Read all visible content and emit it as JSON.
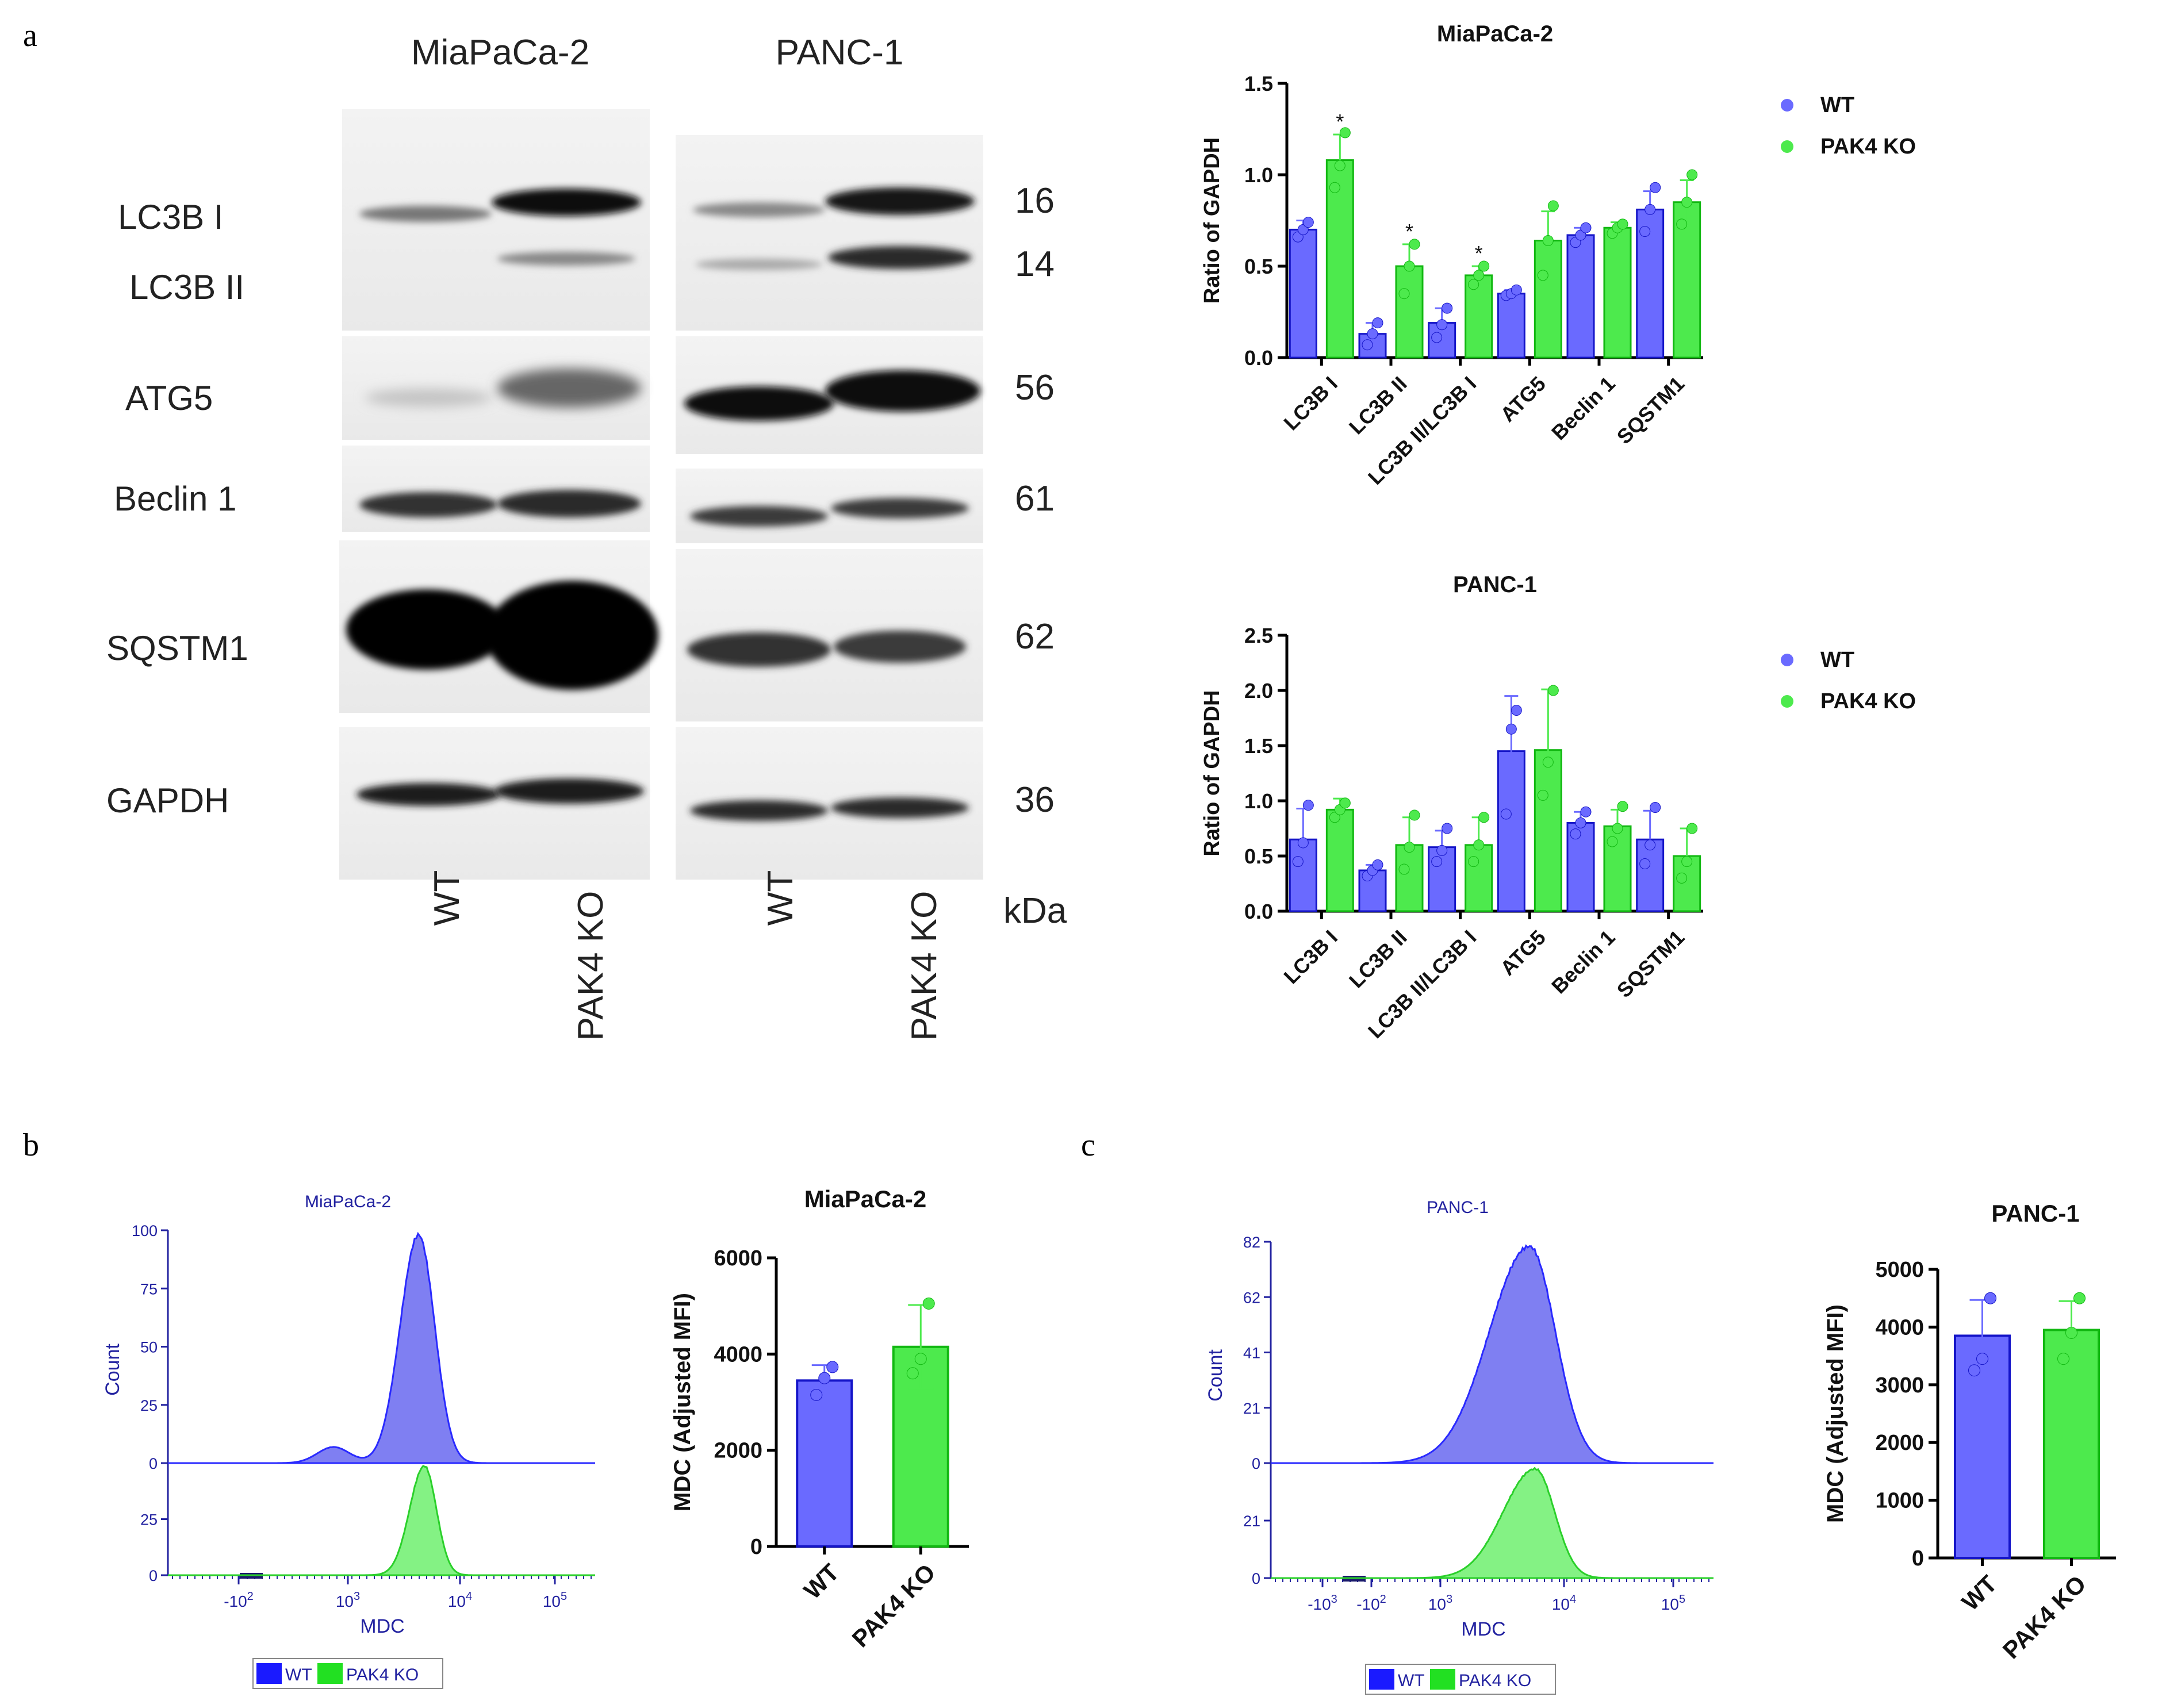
{
  "panel_labels": {
    "a": "a",
    "b": "b",
    "c": "c"
  },
  "blot": {
    "cell_lines": [
      "MiaPaCa-2",
      "PANC-1"
    ],
    "proteins": [
      "LC3B I",
      "LC3B II",
      "ATG5",
      "Beclin 1",
      "SQSTM1",
      "GAPDH"
    ],
    "kda_values": [
      "16",
      "14",
      "56",
      "61",
      "62",
      "36"
    ],
    "kda_unit": "kDa",
    "lane_labels": [
      "WT",
      "PAK4 KO",
      "WT",
      "PAK4 KO"
    ]
  },
  "colors": {
    "wt": "#6a6aff",
    "ko": "#4dea4d",
    "wt_dark": "#1515c8",
    "ko_dark": "#12b812",
    "hist_wt": "#7f7ff2",
    "hist_ko": "#6ef06e",
    "hist_axis": "#2222a0"
  },
  "chart_data": [
    {
      "type": "bar",
      "title": "MiaPaCa-2",
      "ylabel": "Ratio of GAPDH",
      "categories": [
        "LC3B I",
        "LC3B II",
        "LC3B II/LC3B I",
        "ATG5",
        "Beclin 1",
        "SQSTM1"
      ],
      "series": [
        {
          "name": "WT",
          "values": [
            0.7,
            0.13,
            0.19,
            0.35,
            0.67,
            0.81
          ],
          "errors": [
            0.05,
            0.06,
            0.08,
            0.02,
            0.04,
            0.1
          ],
          "points": [
            [
              0.66,
              0.7,
              0.74
            ],
            [
              0.07,
              0.13,
              0.19
            ],
            [
              0.11,
              0.18,
              0.27
            ],
            [
              0.34,
              0.35,
              0.37
            ],
            [
              0.63,
              0.67,
              0.71
            ],
            [
              0.69,
              0.81,
              0.93
            ]
          ]
        },
        {
          "name": "PAK4 KO",
          "values": [
            1.08,
            0.5,
            0.45,
            0.64,
            0.71,
            0.85
          ],
          "errors": [
            0.14,
            0.12,
            0.05,
            0.16,
            0.03,
            0.12
          ],
          "points": [
            [
              0.93,
              1.05,
              1.23
            ],
            [
              0.35,
              0.5,
              0.62
            ],
            [
              0.4,
              0.45,
              0.5
            ],
            [
              0.45,
              0.64,
              0.83
            ],
            [
              0.68,
              0.71,
              0.73
            ],
            [
              0.73,
              0.85,
              1.0
            ]
          ]
        }
      ],
      "significance": [
        "*",
        "*",
        "*",
        "",
        "",
        ""
      ],
      "ylim": [
        0,
        1.5
      ],
      "yticks": [
        "0.0",
        "0.5",
        "1.0",
        "1.5"
      ],
      "legend": "right"
    },
    {
      "type": "bar",
      "title": "PANC-1",
      "ylabel": "Ratio of GAPDH",
      "categories": [
        "LC3B I",
        "LC3B II",
        "LC3B II/LC3B I",
        "ATG5",
        "Beclin 1",
        "SQSTM1"
      ],
      "series": [
        {
          "name": "WT",
          "values": [
            0.65,
            0.37,
            0.58,
            1.45,
            0.8,
            0.65
          ],
          "errors": [
            0.28,
            0.05,
            0.15,
            0.5,
            0.1,
            0.26
          ],
          "points": [
            [
              0.45,
              0.62,
              0.96
            ],
            [
              0.32,
              0.37,
              0.42
            ],
            [
              0.45,
              0.55,
              0.75
            ],
            [
              0.88,
              1.65,
              1.82
            ],
            [
              0.7,
              0.8,
              0.9
            ],
            [
              0.43,
              0.6,
              0.94
            ]
          ]
        },
        {
          "name": "PAK4 KO",
          "values": [
            0.92,
            0.6,
            0.6,
            1.46,
            0.77,
            0.5
          ],
          "errors": [
            0.1,
            0.25,
            0.25,
            0.55,
            0.15,
            0.25
          ],
          "points": [
            [
              0.85,
              0.92,
              0.98
            ],
            [
              0.38,
              0.58,
              0.87
            ],
            [
              0.45,
              0.6,
              0.85
            ],
            [
              1.05,
              1.35,
              2.0
            ],
            [
              0.63,
              0.75,
              0.95
            ],
            [
              0.3,
              0.45,
              0.75
            ]
          ]
        }
      ],
      "ylim": [
        0,
        2.5
      ],
      "yticks": [
        "0.0",
        "0.5",
        "1.0",
        "1.5",
        "2.0",
        "2.5"
      ],
      "legend": "right"
    },
    {
      "type": "bar",
      "title": "MiaPaCa-2",
      "ylabel": "MDC (Adjusted  MFI)",
      "categories": [
        "WT",
        "PAK4 KO"
      ],
      "values": [
        3450,
        4150
      ],
      "errors": [
        320,
        870
      ],
      "points": [
        [
          3150,
          3500,
          3730
        ],
        [
          3600,
          3900,
          5050
        ]
      ],
      "ylim": [
        0,
        6000
      ],
      "yticks": [
        "0",
        "2000",
        "4000",
        "6000"
      ]
    },
    {
      "type": "bar",
      "title": "PANC-1",
      "ylabel": "MDC (Adjusted  MFI)",
      "categories": [
        "WT",
        "PAK4 KO"
      ],
      "values": [
        3850,
        3950
      ],
      "errors": [
        620,
        500
      ],
      "points": [
        [
          3250,
          3450,
          4500
        ],
        [
          3450,
          3900,
          4500
        ]
      ],
      "ylim": [
        0,
        5000
      ],
      "yticks": [
        "0",
        "1000",
        "2000",
        "3000",
        "4000",
        "5000"
      ]
    },
    {
      "type": "area",
      "title": "MiaPaCa-2",
      "xlabel": "MDC",
      "ylabel": "Count",
      "series": [
        "WT",
        "PAK4 KO"
      ],
      "xticks": [
        "-10",
        "10",
        "10",
        "10"
      ],
      "xtick_exponents": [
        "2",
        "3",
        "4",
        "5"
      ],
      "yticks_top": [
        "100",
        "75",
        "50",
        "25",
        "0"
      ],
      "yticks_bottom": [
        "25",
        "0"
      ],
      "peak_mdc": 4500,
      "legend": "bottom"
    },
    {
      "type": "area",
      "title": "PANC-1",
      "xlabel": "MDC",
      "ylabel": "Count",
      "series": [
        "WT",
        "PAK4 KO"
      ],
      "xticks": [
        "-10",
        "-10",
        "10",
        "10",
        "10"
      ],
      "xtick_exponents": [
        "3",
        "2",
        "3",
        "4",
        "5"
      ],
      "yticks_top": [
        "82",
        "62",
        "41",
        "21",
        "0"
      ],
      "yticks_bottom": [
        "21",
        "0"
      ],
      "peak_mdc": 5000,
      "legend": "bottom"
    }
  ]
}
